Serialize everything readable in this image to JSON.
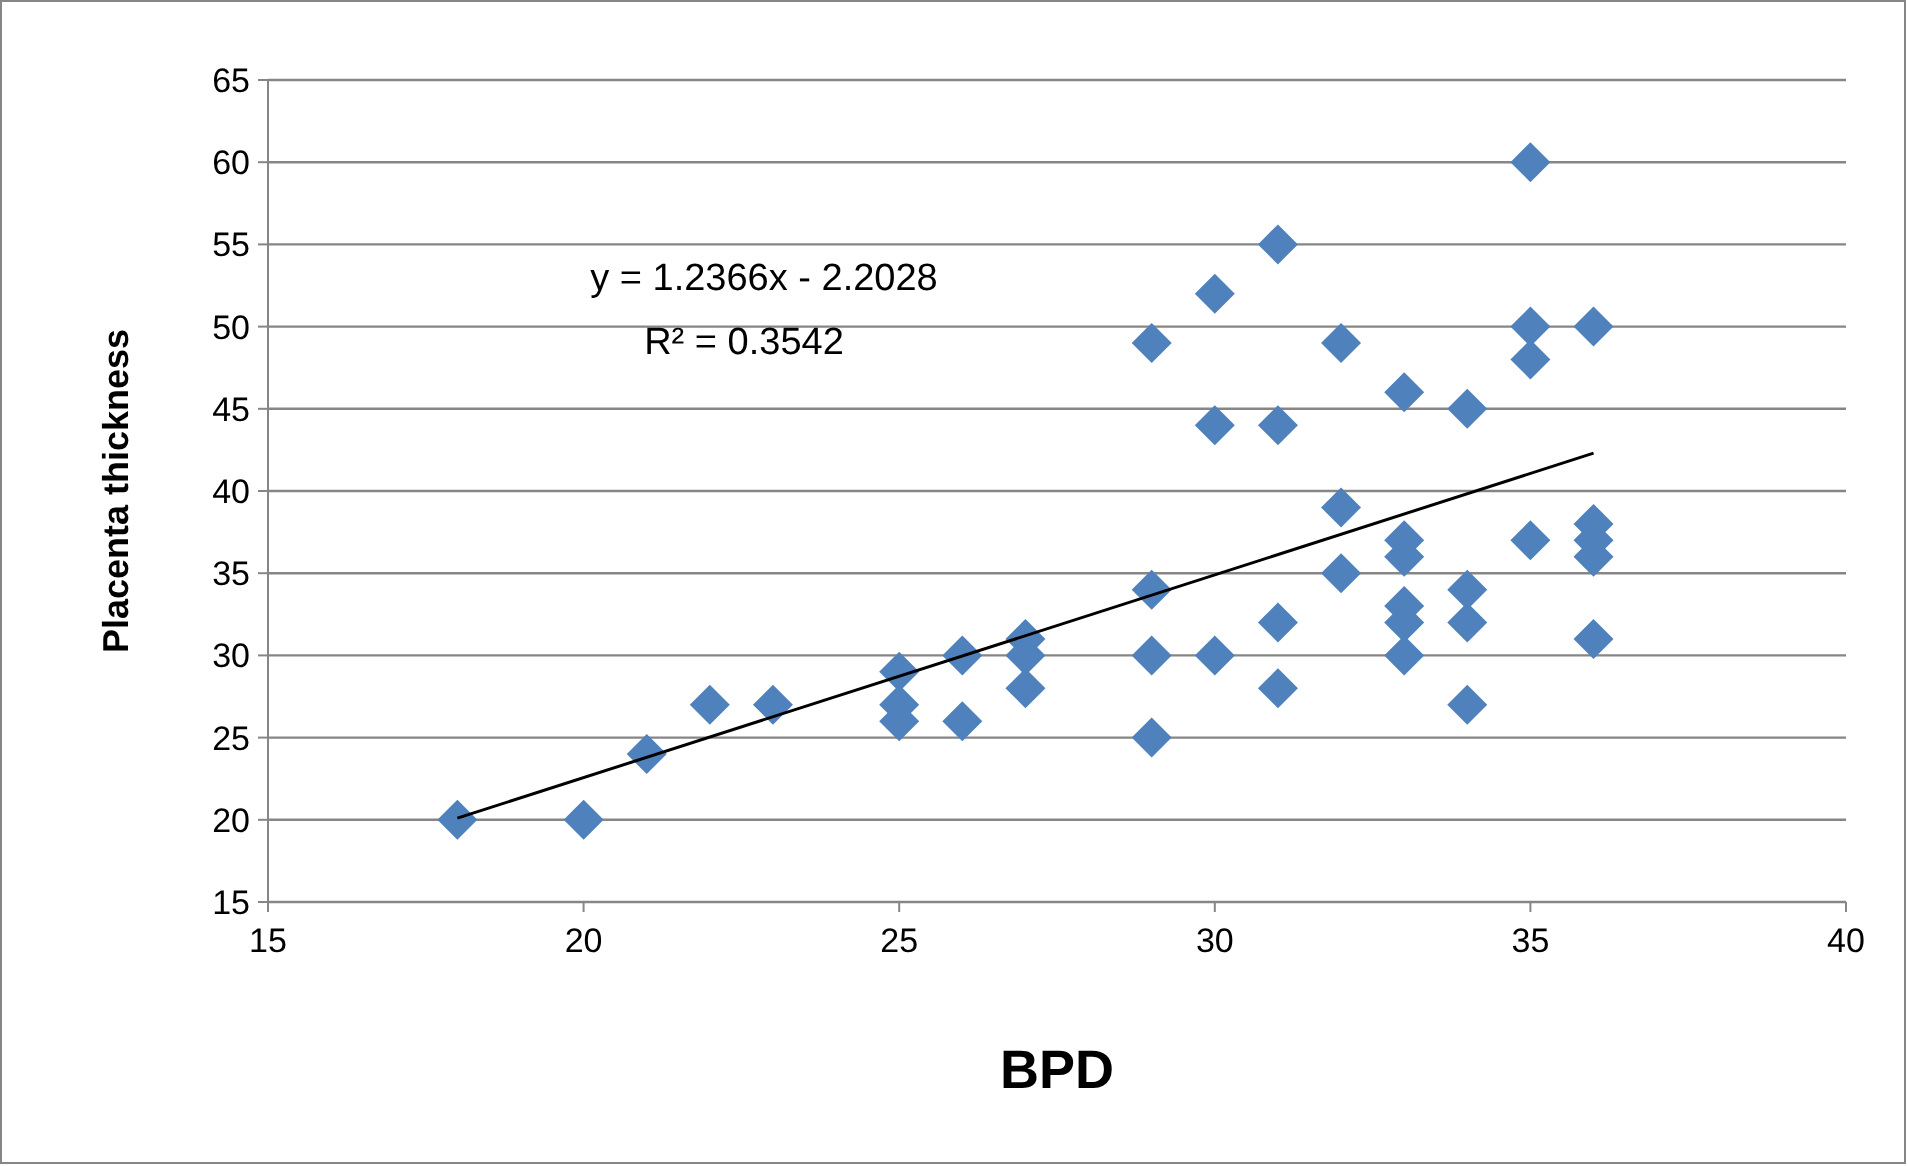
{
  "chart_data": {
    "type": "scatter",
    "xlabel": "BPD",
    "ylabel": "Placenta thickness",
    "xlim": [
      15,
      40
    ],
    "xticks": [
      15,
      20,
      25,
      30,
      35,
      40
    ],
    "ylim": [
      15,
      65
    ],
    "yticks": [
      15,
      20,
      25,
      30,
      35,
      40,
      45,
      50,
      55,
      60,
      65
    ],
    "grid": "y",
    "annotations": [
      "y = 1.2366x - 2.2028",
      "R² = 0.3542"
    ],
    "series": [
      {
        "marker": "diamond",
        "color": "#4f81bd",
        "x": [
          18,
          20,
          21,
          22,
          23,
          25,
          25,
          25,
          26,
          26,
          27,
          27,
          27,
          29,
          29,
          29,
          29,
          30,
          30,
          30,
          31,
          31,
          31,
          31,
          32,
          32,
          32,
          33,
          33,
          33,
          33,
          33,
          33,
          34,
          34,
          34,
          34,
          35,
          35,
          35,
          35,
          36,
          36,
          36,
          36,
          36
        ],
        "values": [
          20,
          20,
          24,
          27,
          27,
          29,
          27,
          26,
          30,
          26,
          31,
          30,
          28,
          49,
          34,
          30,
          25,
          52,
          44,
          30,
          55,
          44,
          32,
          28,
          49,
          39,
          35,
          46,
          37,
          36,
          33,
          32,
          30,
          45,
          34,
          32,
          27,
          60,
          50,
          48,
          37,
          50,
          38,
          37,
          36,
          31
        ]
      },
      {
        "type": "line",
        "marker": "none",
        "color": "#000000",
        "x": [
          18,
          36
        ],
        "values": [
          20.1,
          42.3
        ]
      }
    ]
  }
}
